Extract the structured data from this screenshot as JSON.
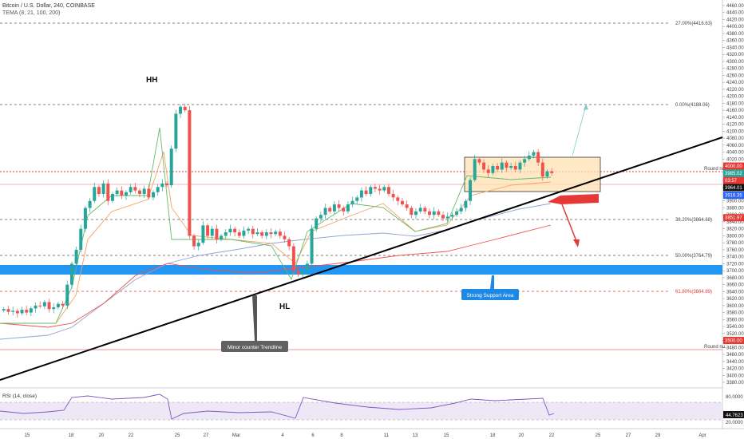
{
  "header": {
    "symbol_line": "Bitcoin / U.S. Dollar, 240, COINBASE",
    "indicator_line": "TEMA (8, 21, 100, 200)"
  },
  "rsi": {
    "label": "RSI (14, close)",
    "value_label": "44.7623",
    "ticks": [
      "80.0000",
      "20.0000"
    ]
  },
  "annotations": {
    "hh": "HH",
    "hl": "HL",
    "minor_trendline": "Minor counter Trendline",
    "support": "Strong Support Area"
  },
  "levels": {
    "fib_27": "27.00%(4416.63)",
    "fib_0": "0.00%(4188.06)",
    "fib_382": "38.20%(3864.68)",
    "fib_50": "50.00%(3764.79)",
    "fib_618": "61.80%(3664.89)",
    "round_upper": "Round nu..",
    "round_lower": "Round nu.."
  },
  "price_tags": [
    {
      "label": "4000.00",
      "value": 4000.0,
      "color": "#e53935"
    },
    {
      "label": "3985.02",
      "value": 3985.02,
      "color": "#26a69a"
    },
    {
      "label": "03:57",
      "value": 3975.0,
      "color": "#e53935"
    },
    {
      "label": "3964.01",
      "value": 3964.01,
      "color": "#111111"
    },
    {
      "label": "3916.35",
      "value": 3916.35,
      "color": "#2962ff"
    },
    {
      "label": "3851.97",
      "value": 3851.97,
      "color": "#e53935"
    },
    {
      "label": "3500.00",
      "value": 3500.0,
      "color": "#e53935"
    }
  ],
  "chart_data": {
    "type": "candlestick",
    "y_axis_ticks": [
      "4460.00",
      "4440.00",
      "4420.00",
      "4400.00",
      "4380.00",
      "4360.00",
      "4340.00",
      "4320.00",
      "4300.00",
      "4280.00",
      "4260.00",
      "4240.00",
      "4220.00",
      "4200.00",
      "4180.00",
      "4160.00",
      "4140.00",
      "4120.00",
      "4100.00",
      "4080.00",
      "4060.00",
      "4040.00",
      "4020.00",
      "4000.00",
      "3980.00",
      "3960.00",
      "3940.00",
      "3920.00",
      "3900.00",
      "3880.00",
      "3860.00",
      "3840.00",
      "3820.00",
      "3800.00",
      "3780.00",
      "3760.00",
      "3740.00",
      "3720.00",
      "3700.00",
      "3680.00",
      "3660.00",
      "3640.00",
      "3620.00",
      "3600.00",
      "3580.00",
      "3560.00",
      "3540.00",
      "3520.00",
      "3500.00",
      "3480.00",
      "3460.00",
      "3440.00",
      "3420.00",
      "3400.00",
      "3380.00"
    ],
    "x_axis_ticks": [
      "15",
      "18",
      "20",
      "22",
      "25",
      "27",
      "Mar",
      "4",
      "6",
      "8",
      "11",
      "13",
      "15",
      "18",
      "20",
      "22",
      "25",
      "27",
      "29",
      "Apr"
    ],
    "ylim": [
      3380,
      4460
    ],
    "colors": {
      "up": "#26a69a",
      "down": "#ef5350"
    },
    "series": [
      {
        "name": "price",
        "values": [
          3590,
          3582,
          3585,
          3578,
          3588,
          3580,
          3592,
          3600,
          3598,
          3610,
          3590,
          3595,
          3605,
          3600,
          3660,
          3720,
          3760,
          3820,
          3880,
          3900,
          3940,
          3920,
          3950,
          3900,
          3920,
          3930,
          3915,
          3925,
          3940,
          3930,
          3920,
          3935,
          3910,
          3925,
          3940,
          3950,
          3945,
          4050,
          4150,
          4170,
          4160,
          3800,
          3770,
          3780,
          3830,
          3800,
          3820,
          3790,
          3800,
          3810,
          3820,
          3810,
          3800,
          3815,
          3820,
          3805,
          3810,
          3800,
          3810,
          3805,
          3812,
          3800,
          3790,
          3770,
          3700,
          3690,
          3700,
          3720,
          3820,
          3850,
          3860,
          3880,
          3870,
          3890,
          3880,
          3870,
          3890,
          3900,
          3910,
          3930,
          3920,
          3940,
          3935,
          3930,
          3940,
          3920,
          3910,
          3900,
          3890,
          3880,
          3860,
          3870,
          3880,
          3870,
          3860,
          3870,
          3860,
          3850,
          3855,
          3860,
          3870,
          3880,
          3900,
          3960,
          4020,
          4010,
          3990,
          3980,
          4000,
          3990,
          4010,
          3995,
          4000,
          3990,
          4010,
          4020,
          4030,
          4040,
          4010,
          3970,
          3985,
          3980
        ]
      }
    ]
  }
}
